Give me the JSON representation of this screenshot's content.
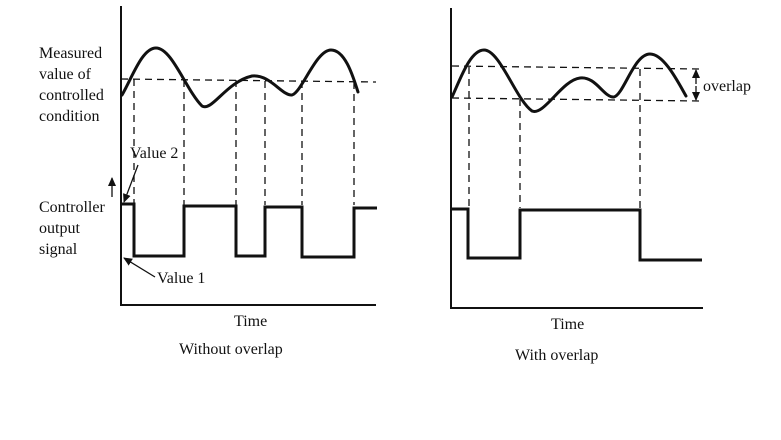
{
  "labels": {
    "measured_line1": "Measured",
    "measured_line2": "value of",
    "measured_line3": "controlled",
    "measured_line4": "condition",
    "controller_line1": "Controller",
    "controller_line2": "output",
    "controller_line3": "signal",
    "value2": "Value 2",
    "value1": "Value 1",
    "overlap": "overlap"
  },
  "panels": [
    {
      "xlabel": "Time",
      "caption": "Without overlap"
    },
    {
      "xlabel": "Time",
      "caption": "With overlap"
    }
  ]
}
